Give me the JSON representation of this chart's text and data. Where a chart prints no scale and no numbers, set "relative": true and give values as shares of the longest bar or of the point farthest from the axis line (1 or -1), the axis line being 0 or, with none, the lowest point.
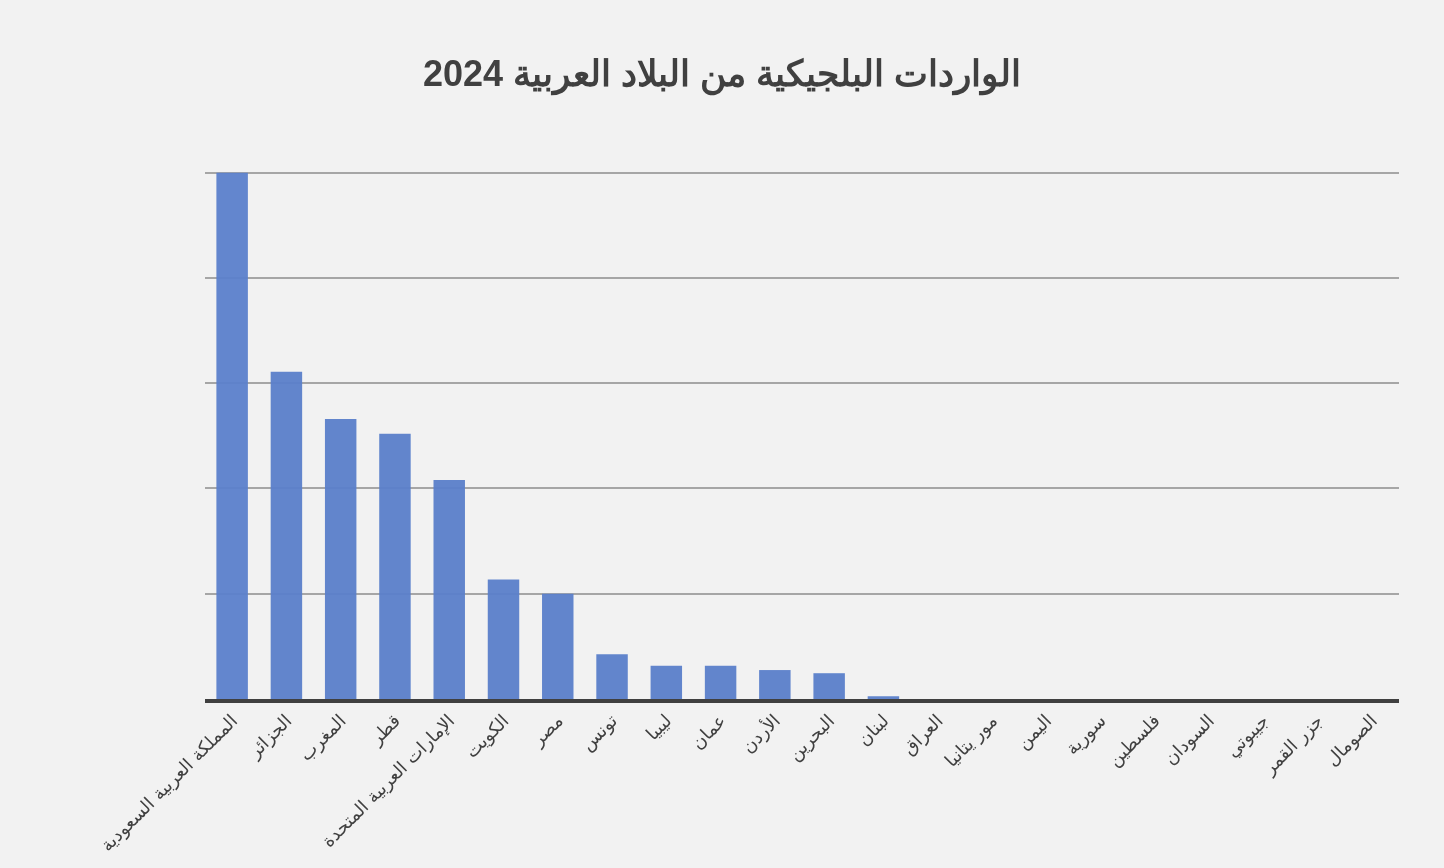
{
  "chart_data": {
    "type": "bar",
    "title": "الواردات البلجيكية من البلاد العربية 2024",
    "categories": [
      "المملكة العربية السعودية",
      "الجزائر",
      "المغرب",
      "قطر",
      "الإمارات العربية المتحدة",
      "الكويت",
      "مصر",
      "تونس",
      "ليبيا",
      "عمان",
      "الأردن",
      "البحرين",
      "لبنان",
      "العراق",
      "مور يتانيا",
      "اليمن",
      "سورية",
      "فلسطين",
      "السودان",
      "جيبوتي",
      "جزر القمر",
      "الصومال"
    ],
    "values": [
      1,
      0.622,
      0.532,
      0.504,
      0.416,
      0.227,
      0.2,
      0.085,
      0.063,
      0.063,
      0.055,
      0.049,
      0.005,
      0,
      0,
      0,
      0,
      0,
      0,
      0,
      0,
      0
    ],
    "color": "#5b80cb",
    "relative": true,
    "grid": "y"
  }
}
